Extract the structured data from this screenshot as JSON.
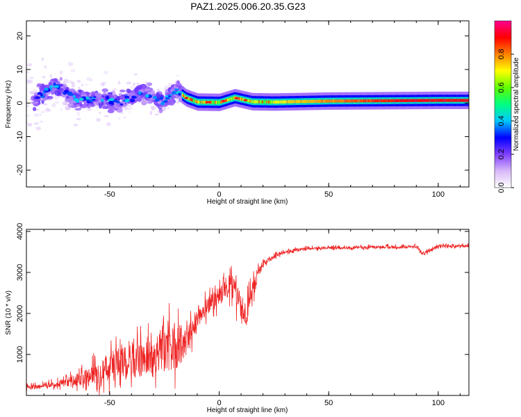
{
  "figure": {
    "title": "PAZ1.2025.006.20.35.G23"
  },
  "chart_data": [
    {
      "type": "heatmap",
      "xlabel": "Height of straight line (km)",
      "ylabel": "Frequency (Hz)",
      "xlim": [
        -88,
        114
      ],
      "ylim": [
        -25,
        24.5
      ],
      "xticks": [
        -50,
        0,
        50,
        100
      ],
      "yticks": [
        -20,
        -10,
        0,
        10,
        20
      ],
      "colorbar": {
        "label": "Normalized spectral amplitude",
        "range": [
          0,
          1
        ],
        "ticks": [
          0.0,
          0.2,
          0.4,
          0.6,
          0.8
        ],
        "tick_labels": [
          "0.0",
          "0.2",
          "0.4",
          "0.6",
          "0.8"
        ],
        "colormap": [
          "#ffffff",
          "#d8b8f8",
          "#8040ff",
          "#0000ff",
          "#00c8ff",
          "#00ff80",
          "#60ff00",
          "#ffff00",
          "#ff8000",
          "#ff0000",
          "#ff0090"
        ]
      },
      "ridge": [
        {
          "x": -85,
          "y": 0.5
        },
        {
          "x": -75,
          "y": 5.5
        },
        {
          "x": -65,
          "y": 1.0
        },
        {
          "x": -55,
          "y": 1.2
        },
        {
          "x": -45,
          "y": 0.0
        },
        {
          "x": -35,
          "y": 3.0
        },
        {
          "x": -25,
          "y": 0.5
        },
        {
          "x": -20,
          "y": 3.8
        },
        {
          "x": -15,
          "y": 1.5
        },
        {
          "x": -10,
          "y": 0.3
        },
        {
          "x": 0,
          "y": 0.2
        },
        {
          "x": 7,
          "y": 1.6
        },
        {
          "x": 15,
          "y": 0.4
        },
        {
          "x": 25,
          "y": 0.3
        },
        {
          "x": 50,
          "y": 0.6
        },
        {
          "x": 75,
          "y": 0.7
        },
        {
          "x": 100,
          "y": 0.8
        },
        {
          "x": 114,
          "y": 0.8
        }
      ],
      "grid": false
    },
    {
      "type": "line",
      "xlabel": "Height of straight line (km)",
      "ylabel": "SNR (10 * v/v)",
      "xlim": [
        -88,
        114
      ],
      "ylim": [
        0,
        4050
      ],
      "xticks": [
        -50,
        0,
        50,
        100
      ],
      "yticks": [
        1000,
        2000,
        3000,
        4000
      ],
      "color": "#ee2222",
      "series": [
        {
          "x": [
            -88,
            -80,
            -70,
            -60,
            -55,
            -50,
            -45,
            -40,
            -35,
            -30,
            -25,
            -20,
            -15,
            -12,
            -10,
            -5,
            0,
            5,
            10,
            12,
            15,
            18,
            20,
            25,
            30,
            35,
            40,
            50,
            60,
            70,
            80,
            90,
            93,
            100,
            110,
            114
          ],
          "y": [
            180,
            250,
            320,
            450,
            600,
            700,
            800,
            850,
            900,
            1000,
            1100,
            1200,
            1300,
            1600,
            1900,
            2200,
            2400,
            2700,
            2200,
            1900,
            2500,
            3000,
            3200,
            3400,
            3500,
            3550,
            3580,
            3600,
            3600,
            3620,
            3620,
            3630,
            3450,
            3640,
            3640,
            3650
          ],
          "amp": [
            120,
            120,
            200,
            400,
            600,
            700,
            800,
            900,
            900,
            1000,
            1100,
            1200,
            700,
            600,
            500,
            450,
            400,
            600,
            700,
            650,
            500,
            300,
            150,
            100,
            80,
            80,
            70,
            70,
            70,
            70,
            70,
            70,
            70,
            70,
            70,
            70
          ]
        }
      ],
      "grid": false
    }
  ]
}
